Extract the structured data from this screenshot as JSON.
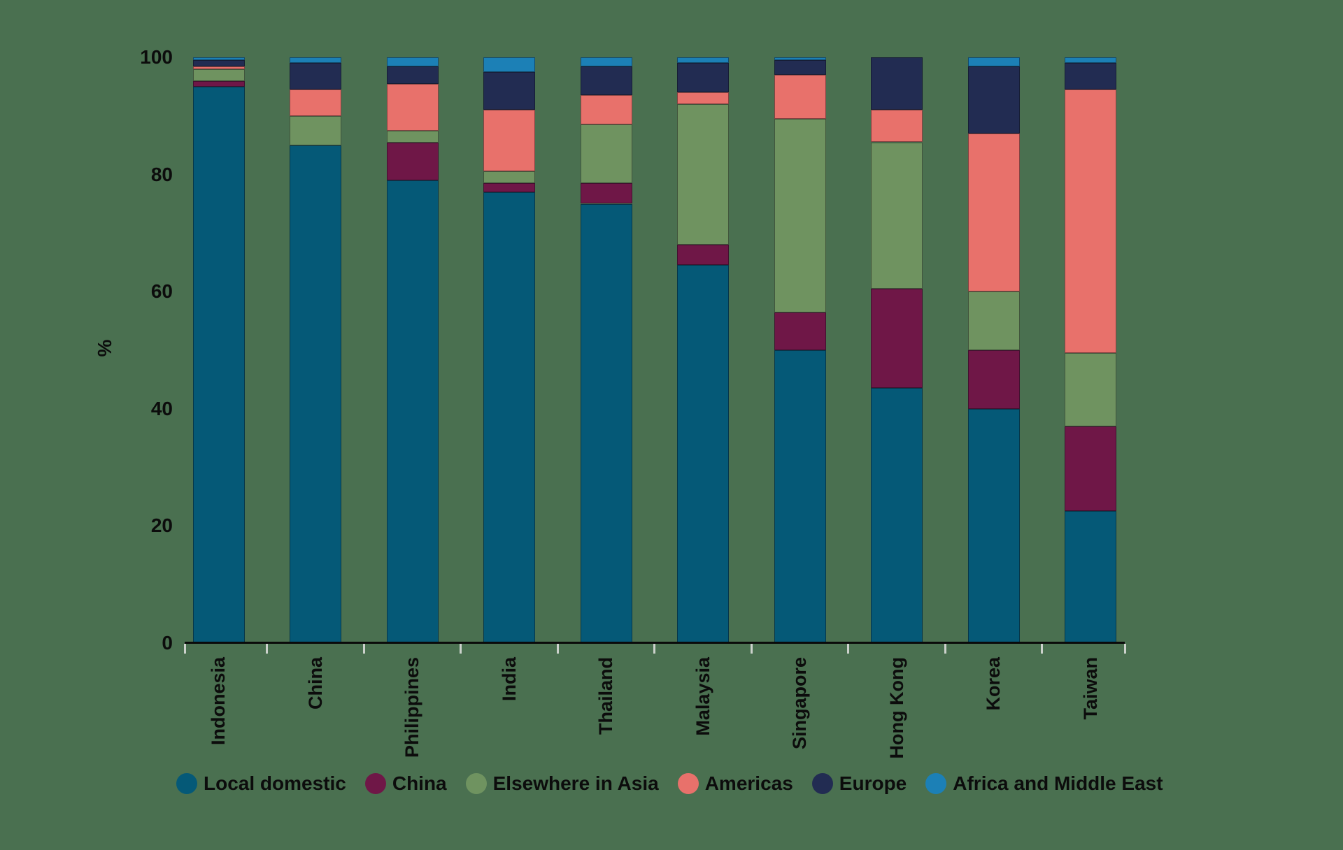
{
  "canvas": {
    "background": "#4a7050",
    "text_color": "#0c0c0c",
    "axis_color": "#0a0a0a",
    "tick_mark_color": "#ccd2cc"
  },
  "chart_data": {
    "type": "bar",
    "variant": "stacked-100-percent-columns",
    "title": "",
    "xlabel": "",
    "ylabel": "%",
    "ylim": [
      0,
      100
    ],
    "yticks": [
      0,
      20,
      40,
      60,
      80,
      100
    ],
    "grid": false,
    "legend_position": "bottom",
    "categories": [
      "Indonesia",
      "China",
      "Philippines",
      "India",
      "Thailand",
      "Malaysia",
      "Singapore",
      "Hong Kong",
      "Korea",
      "Taiwan"
    ],
    "series": [
      {
        "name": "Local domestic",
        "color": "#055977",
        "values": [
          95,
          85,
          79,
          77,
          75,
          64.5,
          50,
          43.5,
          40,
          22.5
        ]
      },
      {
        "name": "China",
        "color": "#6f1747",
        "values": [
          1,
          0,
          6.5,
          1.5,
          3.5,
          3.5,
          6.5,
          17,
          10,
          14.5
        ]
      },
      {
        "name": "Elsewhere in Asia",
        "color": "#6f9360",
        "values": [
          2,
          5,
          2,
          2,
          10,
          24,
          33,
          25,
          10,
          12.5
        ]
      },
      {
        "name": "Americas",
        "color": "#e8716b",
        "values": [
          0.5,
          4.5,
          8,
          10.5,
          5,
          2,
          7.5,
          5.5,
          27,
          45
        ]
      },
      {
        "name": "Europe",
        "color": "#222c52",
        "values": [
          1,
          4.5,
          3,
          6.5,
          5,
          5,
          2.5,
          9,
          11.5,
          4.5
        ]
      },
      {
        "name": "Africa and Middle East",
        "color": "#1c80b6",
        "values": [
          0.5,
          1,
          1.5,
          2.5,
          1.5,
          1,
          0.5,
          0,
          1.5,
          1
        ]
      }
    ]
  }
}
